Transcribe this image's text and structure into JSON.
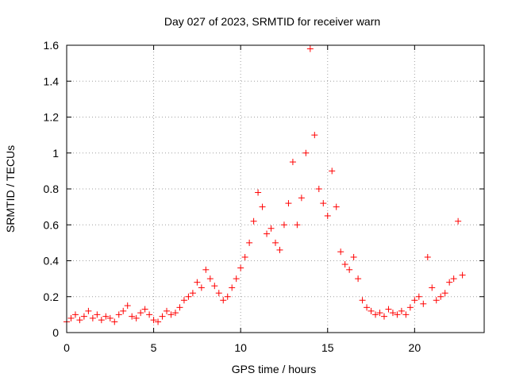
{
  "chart_data": {
    "type": "scatter",
    "title": "Day 027 of 2023, SRMTID for receiver warn",
    "xlabel": "GPS time / hours",
    "ylabel": "SRMTID / TECUs",
    "xlim": [
      0,
      24
    ],
    "ylim": [
      0,
      1.6
    ],
    "x_ticks": [
      0,
      5,
      10,
      15,
      20
    ],
    "x_tick_labels": [
      "0",
      "5",
      "10",
      "15",
      "20"
    ],
    "y_ticks": [
      0,
      0.2,
      0.4,
      0.6,
      0.8,
      1.0,
      1.2,
      1.4,
      1.6
    ],
    "y_tick_labels": [
      "0",
      "0.2",
      "0.4",
      "0.6",
      "0.8",
      "1",
      "1.2",
      "1.4",
      "1.6"
    ],
    "grid": true,
    "marker": "+",
    "marker_color": "#ff0000",
    "series": [
      {
        "name": "SRMTID",
        "x": [
          0.0,
          0.25,
          0.5,
          0.75,
          1.0,
          1.25,
          1.5,
          1.75,
          2.0,
          2.25,
          2.5,
          2.75,
          3.0,
          3.25,
          3.5,
          3.75,
          4.0,
          4.25,
          4.5,
          4.75,
          5.0,
          5.25,
          5.5,
          5.75,
          6.0,
          6.25,
          6.5,
          6.75,
          7.0,
          7.25,
          7.5,
          7.75,
          8.0,
          8.25,
          8.5,
          8.75,
          9.0,
          9.25,
          9.5,
          9.75,
          10.0,
          10.25,
          10.5,
          10.75,
          11.0,
          11.25,
          11.5,
          11.75,
          12.0,
          12.25,
          12.5,
          12.75,
          13.0,
          13.25,
          13.5,
          13.75,
          14.0,
          14.25,
          14.5,
          14.75,
          15.0,
          15.25,
          15.5,
          15.75,
          16.0,
          16.25,
          16.5,
          16.75,
          17.0,
          17.25,
          17.5,
          17.75,
          18.0,
          18.25,
          18.5,
          18.75,
          19.0,
          19.25,
          19.5,
          19.75,
          20.0,
          20.25,
          20.5,
          20.75,
          21.0,
          21.25,
          21.5,
          21.75,
          22.0,
          22.25,
          22.5,
          22.75
        ],
        "y": [
          0.06,
          0.08,
          0.1,
          0.07,
          0.09,
          0.12,
          0.08,
          0.1,
          0.07,
          0.09,
          0.08,
          0.06,
          0.1,
          0.12,
          0.15,
          0.09,
          0.08,
          0.11,
          0.13,
          0.1,
          0.07,
          0.06,
          0.09,
          0.12,
          0.1,
          0.11,
          0.14,
          0.18,
          0.2,
          0.22,
          0.28,
          0.25,
          0.35,
          0.3,
          0.26,
          0.22,
          0.18,
          0.2,
          0.25,
          0.3,
          0.36,
          0.42,
          0.5,
          0.62,
          0.78,
          0.7,
          0.55,
          0.58,
          0.5,
          0.46,
          0.6,
          0.72,
          0.95,
          0.6,
          0.75,
          1.0,
          1.58,
          1.1,
          0.8,
          0.72,
          0.65,
          0.9,
          0.7,
          0.45,
          0.38,
          0.35,
          0.42,
          0.3,
          0.18,
          0.14,
          0.12,
          0.1,
          0.11,
          0.09,
          0.13,
          0.11,
          0.1,
          0.12,
          0.1,
          0.14,
          0.18,
          0.2,
          0.16,
          0.42,
          0.25,
          0.18,
          0.2,
          0.22,
          0.28,
          0.3,
          0.62,
          0.32
        ]
      }
    ]
  }
}
